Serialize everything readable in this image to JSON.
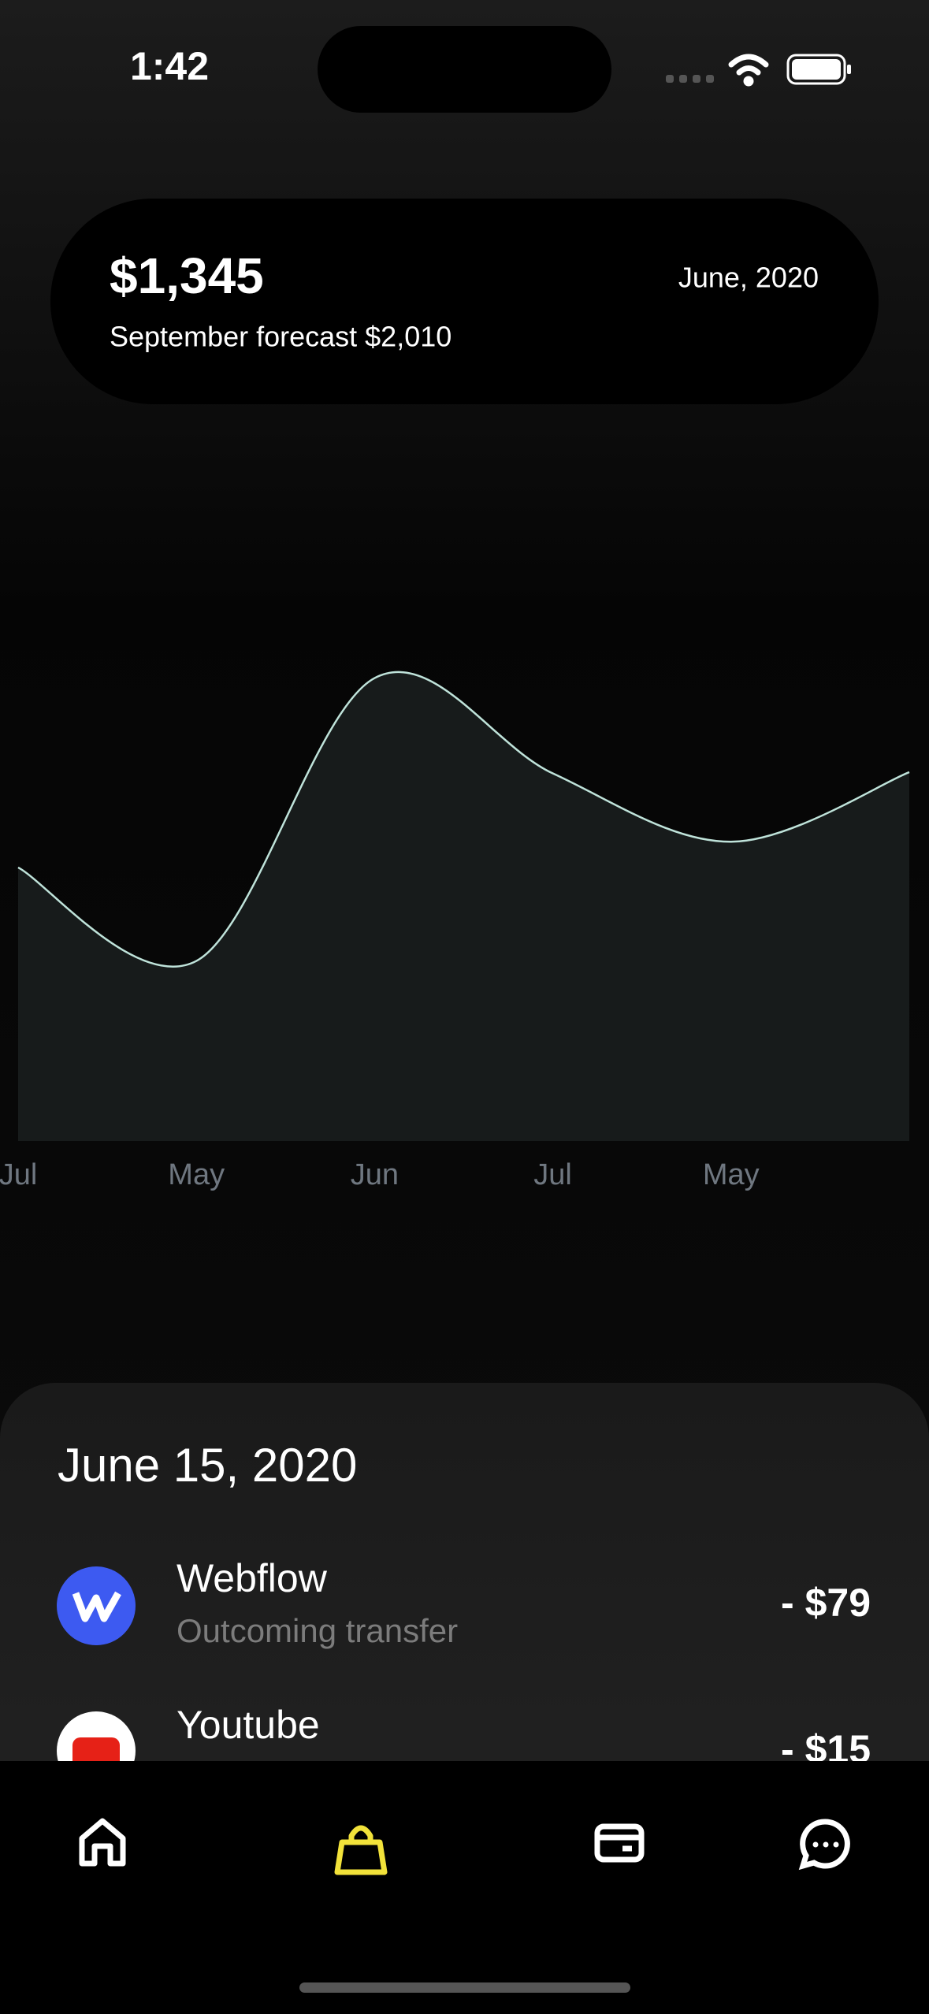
{
  "status": {
    "time": "1:42"
  },
  "header": {
    "amount": "$1,345",
    "forecast": "September forecast $2,010",
    "date": "June, 2020"
  },
  "chart": {
    "type": "line",
    "categories": [
      "Jul",
      "May",
      "Jun",
      "Jul",
      "May",
      null
    ],
    "values": [
      43.6,
      28.7,
      73.8,
      58.6,
      47.7,
      58.8
    ],
    "ylim": [
      0,
      100
    ],
    "color": "#bfe3da"
  },
  "transactions": {
    "date": "June 15, 2020",
    "items": [
      {
        "name": "Webflow",
        "subtitle": "Outcoming transfer",
        "amount": "- $79"
      },
      {
        "name": "Youtube",
        "amount": "- $15"
      }
    ]
  }
}
